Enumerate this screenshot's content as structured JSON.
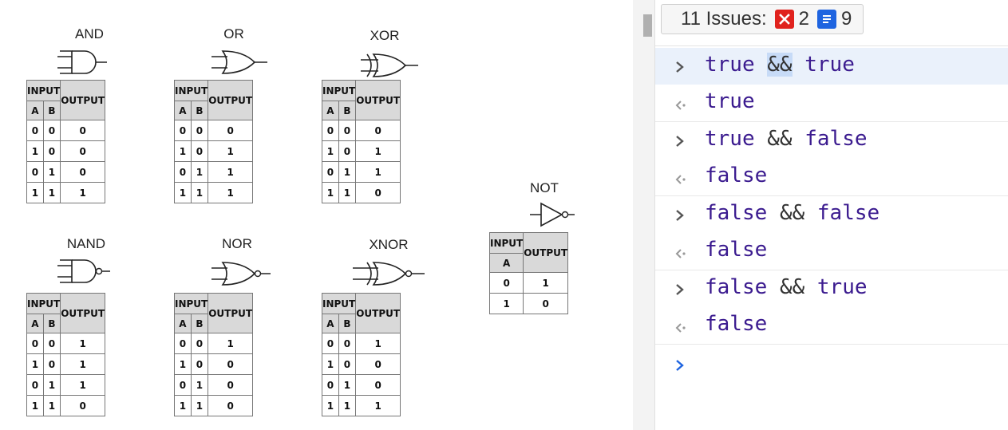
{
  "gates": [
    {
      "name": "AND",
      "headers": {
        "input": "INPUT",
        "a": "A",
        "b": "B",
        "output": "OUTPUT"
      },
      "rows": [
        [
          "0",
          "0",
          "0"
        ],
        [
          "1",
          "0",
          "0"
        ],
        [
          "0",
          "1",
          "0"
        ],
        [
          "1",
          "1",
          "1"
        ]
      ]
    },
    {
      "name": "OR",
      "headers": {
        "input": "INPUT",
        "a": "A",
        "b": "B",
        "output": "OUTPUT"
      },
      "rows": [
        [
          "0",
          "0",
          "0"
        ],
        [
          "1",
          "0",
          "1"
        ],
        [
          "0",
          "1",
          "1"
        ],
        [
          "1",
          "1",
          "1"
        ]
      ]
    },
    {
      "name": "XOR",
      "headers": {
        "input": "INPUT",
        "a": "A",
        "b": "B",
        "output": "OUTPUT"
      },
      "rows": [
        [
          "0",
          "0",
          "0"
        ],
        [
          "1",
          "0",
          "1"
        ],
        [
          "0",
          "1",
          "1"
        ],
        [
          "1",
          "1",
          "0"
        ]
      ]
    },
    {
      "name": "NAND",
      "headers": {
        "input": "INPUT",
        "a": "A",
        "b": "B",
        "output": "OUTPUT"
      },
      "rows": [
        [
          "0",
          "0",
          "1"
        ],
        [
          "1",
          "0",
          "1"
        ],
        [
          "0",
          "1",
          "1"
        ],
        [
          "1",
          "1",
          "0"
        ]
      ]
    },
    {
      "name": "NOR",
      "headers": {
        "input": "INPUT",
        "a": "A",
        "b": "B",
        "output": "OUTPUT"
      },
      "rows": [
        [
          "0",
          "0",
          "1"
        ],
        [
          "1",
          "0",
          "0"
        ],
        [
          "0",
          "1",
          "0"
        ],
        [
          "1",
          "1",
          "0"
        ]
      ]
    },
    {
      "name": "XNOR",
      "headers": {
        "input": "INPUT",
        "a": "A",
        "b": "B",
        "output": "OUTPUT"
      },
      "rows": [
        [
          "0",
          "0",
          "1"
        ],
        [
          "1",
          "0",
          "0"
        ],
        [
          "0",
          "1",
          "0"
        ],
        [
          "1",
          "1",
          "1"
        ]
      ]
    }
  ],
  "not_gate": {
    "name": "NOT",
    "headers": {
      "input": "INPUT",
      "a": "A",
      "output": "OUTPUT"
    },
    "rows": [
      [
        "0",
        "1"
      ],
      [
        "1",
        "0"
      ]
    ]
  },
  "issues": {
    "label": "11 Issues:",
    "error_count": "2",
    "info_count": "9"
  },
  "console": [
    {
      "input": [
        "true",
        " ",
        "&&",
        " ",
        "true"
      ],
      "output": "true"
    },
    {
      "input": [
        "true",
        " ",
        "&&",
        " ",
        "false"
      ],
      "output": "false"
    },
    {
      "input": [
        "false",
        " ",
        "&&",
        " ",
        "false"
      ],
      "output": "false"
    },
    {
      "input": [
        "false",
        " ",
        "&&",
        " ",
        "true"
      ],
      "output": "false"
    }
  ],
  "colors": {
    "keyword": "#3b1b8f",
    "prompt": "#1e64e0",
    "error_badge": "#e0221d",
    "info_badge": "#1e64e0",
    "highlight": "#c7dbf7"
  },
  "icons": {
    "prompt": "chevron-right-icon",
    "result": "result-arrow-icon",
    "error": "error-x-icon",
    "info": "message-icon"
  }
}
